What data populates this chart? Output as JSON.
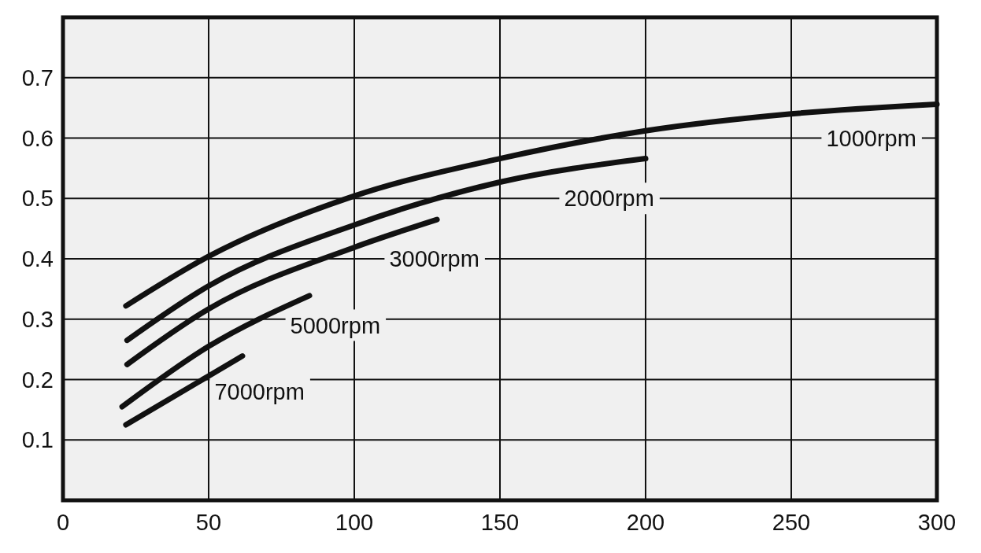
{
  "chart_data": {
    "type": "line",
    "xlim": [
      0,
      300
    ],
    "xticks": [
      0,
      50,
      100,
      150,
      200,
      250,
      300
    ],
    "ylim": [
      0,
      0.8
    ],
    "yticks": [
      {
        "value": 0,
        "label": null
      },
      0.1,
      0.2,
      0.3,
      0.4,
      0.5,
      0.6,
      0.7,
      {
        "value": 0.8,
        "label": null
      }
    ],
    "grid": true,
    "line_style": "solid",
    "marker": "none",
    "series": [
      {
        "name": "1000rpm",
        "color": "#111111",
        "x": [
          21.6,
          50,
          100,
          150,
          200,
          250,
          300
        ],
        "values": [
          0.322,
          0.404,
          0.504,
          0.566,
          0.612,
          0.64,
          0.656
        ]
      },
      {
        "name": "2000rpm",
        "color": "#111111",
        "x": [
          22,
          50,
          100,
          150,
          200
        ],
        "values": [
          0.265,
          0.355,
          0.456,
          0.527,
          0.566
        ]
      },
      {
        "name": "3000rpm",
        "color": "#111111",
        "x": [
          22,
          50,
          100,
          128.4
        ],
        "values": [
          0.225,
          0.317,
          0.419,
          0.465
        ]
      },
      {
        "name": "5000rpm",
        "color": "#111111",
        "x": [
          20.3,
          50,
          84.6
        ],
        "values": [
          0.155,
          0.255,
          0.339
        ]
      },
      {
        "name": "7000rpm",
        "color": "#111111",
        "x": [
          21.6,
          50,
          61.6
        ],
        "values": [
          0.125,
          0.206,
          0.239
        ]
      }
    ]
  }
}
